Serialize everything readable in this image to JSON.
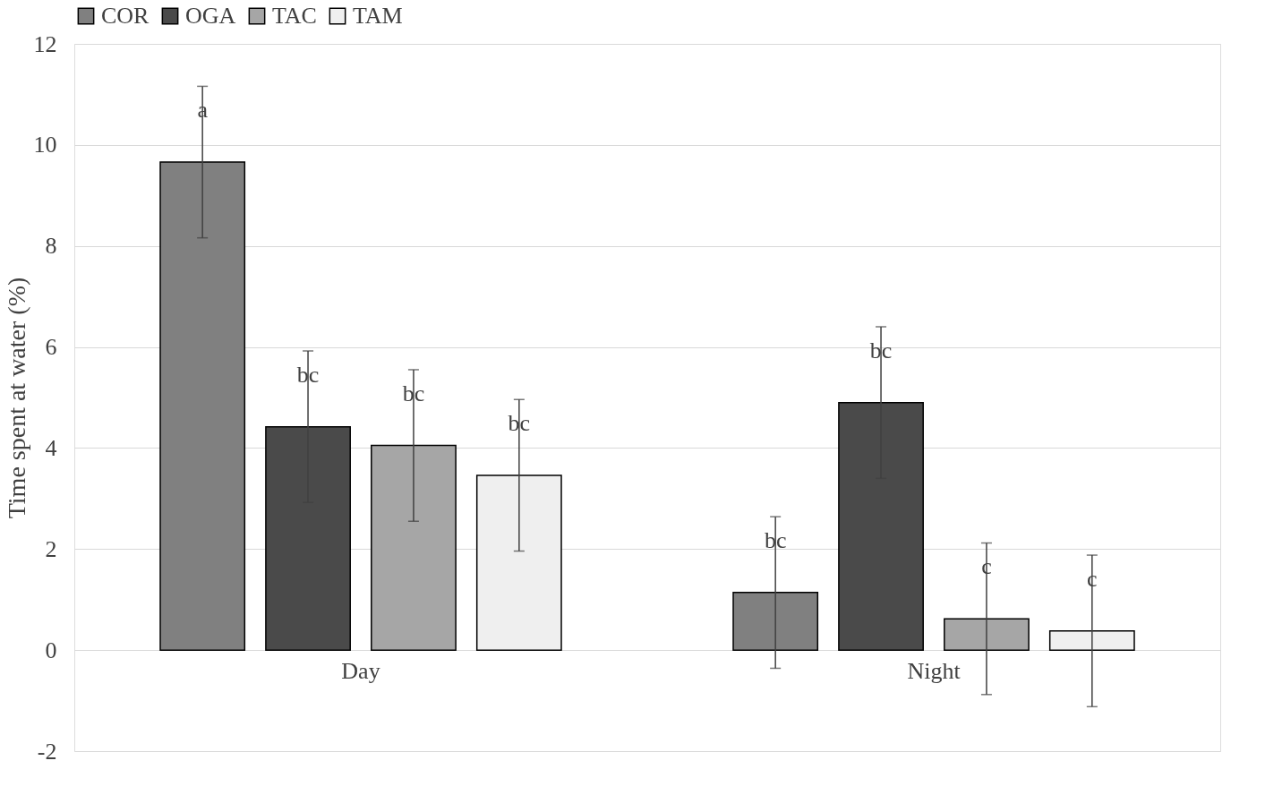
{
  "chart_data": {
    "type": "bar",
    "ylabel": "Time spent at water (%)",
    "categories": [
      "Day",
      "Night"
    ],
    "series": [
      {
        "name": "COR",
        "color": "#808080",
        "values": [
          9.66,
          1.14
        ],
        "errors": [
          1.5,
          1.5
        ],
        "value_labels": [
          "a",
          "bc"
        ]
      },
      {
        "name": "OGA",
        "color": "#4a4a4a",
        "values": [
          4.42,
          4.9
        ],
        "errors": [
          1.5,
          1.5
        ],
        "value_labels": [
          "bc",
          "bc"
        ]
      },
      {
        "name": "TAC",
        "color": "#a6a6a6",
        "values": [
          4.05,
          0.62
        ],
        "errors": [
          1.5,
          1.5
        ],
        "value_labels": [
          "bc",
          "c"
        ]
      },
      {
        "name": "TAM",
        "color": "#efefef",
        "values": [
          3.46,
          0.38
        ],
        "errors": [
          1.5,
          1.5
        ],
        "value_labels": [
          "bc",
          "c"
        ]
      }
    ],
    "ylim": [
      -2,
      12
    ],
    "yticks": [
      -2,
      0,
      2,
      4,
      6,
      8,
      10,
      12
    ],
    "grid": "y",
    "legend": "top"
  }
}
